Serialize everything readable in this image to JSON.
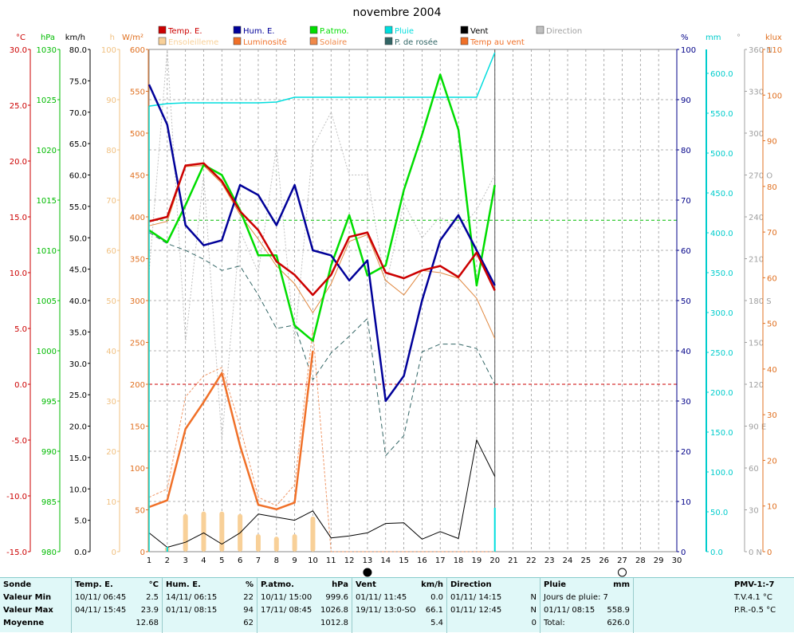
{
  "chart_data": {
    "type": "line",
    "title": "novembre 2004",
    "x": [
      1,
      2,
      3,
      4,
      5,
      6,
      7,
      8,
      9,
      10,
      11,
      12,
      13,
      14,
      15,
      16,
      17,
      18,
      19,
      20
    ],
    "x_ticks": [
      "1",
      "2",
      "3",
      "4",
      "5",
      "6",
      "7",
      "8",
      "9",
      "10",
      "11",
      "12",
      "13",
      "14",
      "15",
      "16",
      "17",
      "18",
      "19",
      "20",
      "21",
      "22",
      "23",
      "24",
      "25",
      "26",
      "27",
      "28",
      "29",
      "30"
    ],
    "xlim": [
      1,
      30
    ],
    "grid": true,
    "left_axes": [
      {
        "unit": "°C",
        "color": "#cc0000",
        "ticks": [
          "30.0",
          "25.0",
          "20.0",
          "15.0",
          "10.0",
          "5.0",
          "0.0",
          "-5.0",
          "-10.0",
          "-15.0"
        ]
      },
      {
        "unit": "hPa",
        "color": "#00bb00",
        "ticks": [
          "1030",
          "1025",
          "1020",
          "1015",
          "1010",
          "1005",
          "1000",
          "995",
          "990",
          "985",
          "980"
        ]
      },
      {
        "unit": "km/h",
        "color": "#000000",
        "ticks": [
          "80.0",
          "75.0",
          "70.0",
          "65.0",
          "60.0",
          "55.0",
          "50.0",
          "45.0",
          "40.0",
          "35.0",
          "30.0",
          "25.0",
          "20.0",
          "15.0",
          "10.0",
          "5.0",
          "0.0"
        ]
      },
      {
        "unit": "h",
        "color": "#f0c080",
        "ticks": [
          "100",
          "90",
          "80",
          "70",
          "60",
          "50",
          "40",
          "30",
          "20",
          "10",
          "0"
        ]
      },
      {
        "unit": "W/m²",
        "color": "#e07020",
        "ticks": [
          "600",
          "550",
          "500",
          "450",
          "400",
          "350",
          "300",
          "250",
          "200",
          "150",
          "100",
          "50",
          "0"
        ]
      }
    ],
    "right_axes": [
      {
        "unit": "%",
        "color": "#000088",
        "ticks": [
          "100",
          "90",
          "80",
          "70",
          "60",
          "50",
          "40",
          "30",
          "20",
          "10",
          "0"
        ]
      },
      {
        "unit": "mm",
        "color": "#00cccc",
        "ticks": [
          "600.0",
          "550.0",
          "500.0",
          "450.0",
          "400.0",
          "350.0",
          "300.0",
          "250.0",
          "200.0",
          "150.0",
          "100.0",
          "50.0",
          "0.0"
        ]
      },
      {
        "unit": "°",
        "color": "#a0a0a0",
        "ticks": [
          "360 N",
          "330",
          "300",
          "270 O",
          "240",
          "210",
          "180 S",
          "150",
          "120",
          "90  E",
          "60",
          "30",
          "0  N"
        ]
      },
      {
        "unit": "klux",
        "color": "#e07020",
        "ticks": [
          "110",
          "100",
          "90",
          "80",
          "70",
          "60",
          "50",
          "40",
          "30",
          "20",
          "10",
          "0"
        ]
      }
    ],
    "legend": [
      {
        "name": "Temp. E.",
        "color": "#cc0000"
      },
      {
        "name": "Hum. E.",
        "color": "#000099"
      },
      {
        "name": "P.atmo.",
        "color": "#00dd00"
      },
      {
        "name": "Pluie",
        "color": "#00dddd"
      },
      {
        "name": "Vent",
        "color": "#000000"
      },
      {
        "name": "Direction",
        "color": "#c0c0c0"
      },
      {
        "name": "Ensoleilleme",
        "color": "#f8d098"
      },
      {
        "name": "Luminosité",
        "color": "#f07028"
      },
      {
        "name": "Solaire",
        "color": "#f08848"
      },
      {
        "name": "P. de rosée",
        "color": "#336666"
      },
      {
        "name": "Temp au vent",
        "color": "#f07028"
      }
    ],
    "series": [
      {
        "name": "Temp. E.",
        "axis": "°C",
        "values": [
          14.6,
          15.0,
          19.6,
          19.8,
          18.2,
          15.5,
          13.8,
          11.0,
          9.8,
          8.0,
          9.8,
          13.2,
          13.6,
          10.0,
          9.5,
          10.2,
          10.6,
          9.6,
          11.8,
          8.4
        ]
      },
      {
        "name": "Hum. E.",
        "axis": "%",
        "values": [
          93,
          85,
          65,
          61,
          62,
          73,
          71,
          65,
          73,
          60,
          59,
          54,
          58,
          30,
          35,
          50,
          62,
          67,
          60,
          53
        ]
      },
      {
        "name": "P.atmo.",
        "axis": "hPa",
        "values": [
          1012.0,
          1010.8,
          1014.5,
          1018.5,
          1017.5,
          1014.0,
          1009.5,
          1009.5,
          1002.5,
          1001.0,
          1008.5,
          1013.5,
          1007.5,
          1008.5,
          1016.0,
          1021.5,
          1027.5,
          1022.0,
          1006.5,
          1016.5
        ]
      },
      {
        "name": "Pluie",
        "axis": "mm",
        "values": [
          558.9,
          562.0,
          563.0,
          563.0,
          563.0,
          563.0,
          563.0,
          564.0,
          570.0,
          570.0,
          570.0,
          570.0,
          570.0,
          570.0,
          570.0,
          570.0,
          570.0,
          570.0,
          570.0,
          626.0
        ]
      },
      {
        "name": "Vent",
        "axis": "km/h",
        "values": [
          3.0,
          0.7,
          1.5,
          3.0,
          1.2,
          3.0,
          6.0,
          5.5,
          5.0,
          6.5,
          2.2,
          2.5,
          3.0,
          4.5,
          4.6,
          2.0,
          3.2,
          2.1,
          17.8,
          12.0
        ]
      },
      {
        "name": "Direction",
        "axis": "°",
        "values": [
          200,
          360,
          150,
          270,
          80,
          230,
          200,
          290,
          150,
          290,
          315,
          270,
          270,
          190,
          250,
          225,
          240,
          230,
          245,
          270
        ]
      },
      {
        "name": "Luminosité",
        "axis": "W/m²",
        "values": [
          65,
          75,
          185,
          210,
          220,
          150,
          65,
          55,
          80,
          265,
          0,
          0,
          0,
          0,
          0,
          0,
          0,
          0,
          0,
          0
        ]
      },
      {
        "name": "Solaire",
        "axis": "°C",
        "values": [
          14.2,
          14.6,
          19.5,
          19.6,
          18.0,
          15.2,
          13.0,
          10.6,
          9.0,
          6.4,
          9.0,
          12.8,
          13.4,
          9.3,
          8.0,
          10.2,
          10.0,
          9.5,
          7.7,
          4.1
        ]
      },
      {
        "name": "P. de rosée",
        "axis": "°C",
        "values": [
          13.6,
          12.6,
          12.0,
          11.2,
          10.2,
          10.6,
          8.0,
          5.0,
          5.3,
          0.4,
          2.8,
          4.3,
          5.9,
          -6.4,
          -4.6,
          2.9,
          3.6,
          3.6,
          3.2,
          0.0
        ]
      },
      {
        "name": "Temp au vent",
        "axis": "°C",
        "values": [
          -11.0,
          -10.4,
          -4.0,
          -1.6,
          1.0,
          -5.5,
          -10.8,
          -11.2,
          -10.6,
          3.0,
          null,
          null,
          null,
          null,
          null,
          null,
          null,
          null,
          null,
          null
        ]
      },
      {
        "name": "Ensoleilleme",
        "axis": "h",
        "values": [
          0,
          1,
          7.5,
          8,
          8,
          7.5,
          3.5,
          3,
          3.5,
          7,
          0,
          0,
          0,
          0,
          0,
          0,
          0,
          0,
          0,
          0
        ]
      }
    ],
    "ref_lines": [
      {
        "axis": "°C",
        "value": 0.0,
        "color": "#cc0000"
      },
      {
        "axis": "hPa",
        "value": 1013.0,
        "color": "#00bb00"
      }
    ],
    "moon_markers": [
      {
        "x": 13,
        "phase": "new"
      },
      {
        "x": 27,
        "phase": "full"
      }
    ]
  },
  "summary": {
    "sonde": {
      "title": "Sonde",
      "rows": [
        "Valeur Min",
        "Valeur Max",
        "Moyenne"
      ]
    },
    "temp": {
      "title": "Temp. E.",
      "unit": "°C",
      "min": {
        "date": "10/11/ 06:45",
        "value": "2.5"
      },
      "max": {
        "date": "04/11/ 15:45",
        "value": "23.9"
      },
      "avg": "12.68"
    },
    "hum": {
      "title": "Hum. E.",
      "unit": "%",
      "min": {
        "date": "14/11/ 06:15",
        "value": "22"
      },
      "max": {
        "date": "01/11/ 08:15",
        "value": "94"
      },
      "avg": "62"
    },
    "patmo": {
      "title": "P.atmo.",
      "unit": "hPa",
      "min": {
        "date": "10/11/ 15:00",
        "value": "999.6"
      },
      "max": {
        "date": "17/11/ 08:45",
        "value": "1026.8"
      },
      "avg": "1012.8"
    },
    "vent": {
      "title": "Vent",
      "unit": "km/h",
      "min": {
        "date": "01/11/ 11:45",
        "value": "0.0"
      },
      "max": {
        "date": "19/11/ 13:0-SO",
        "value": "66.1"
      },
      "avg": "5.4"
    },
    "direction": {
      "title": "Direction",
      "min": {
        "date": "01/11/ 14:15",
        "value": "N"
      },
      "max": {
        "date": "01/11/ 12:45",
        "value": "N"
      },
      "avg": "0"
    },
    "pluie": {
      "title": "Pluie",
      "unit": "mm",
      "days_label": "Jours de pluie: 7",
      "max": {
        "date": "01/11/ 08:15",
        "value": "558.9"
      },
      "total_label": "Total:",
      "total": "626.0"
    },
    "pmv": {
      "title": "PMV-1:-7",
      "tv": "T.V.4.1 °C",
      "pr": "P.R.-0.5 °C"
    }
  }
}
